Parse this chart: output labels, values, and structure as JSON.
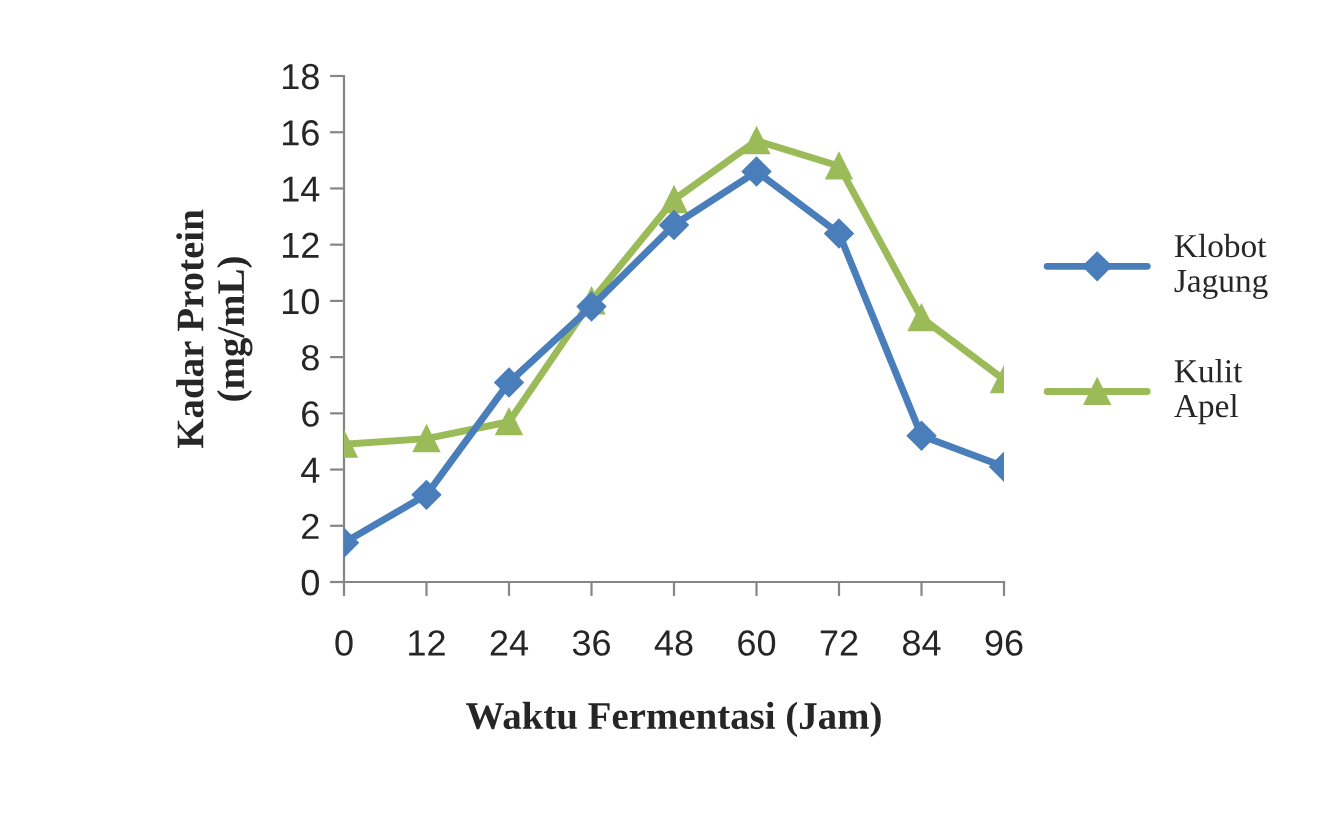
{
  "chart_data": {
    "type": "line",
    "xlabel": "Waktu Fermentasi (Jam)",
    "ylabel": "Kadar Protein\n(mg/mL)",
    "x": [
      0,
      12,
      24,
      36,
      48,
      60,
      72,
      84,
      96
    ],
    "series": [
      {
        "name": "Klobot\nJagung",
        "color": "#4a7ebb",
        "marker": "diamond",
        "values": [
          1.4,
          3.1,
          7.1,
          9.8,
          12.7,
          14.6,
          12.4,
          5.2,
          4.1
        ]
      },
      {
        "name": "Kulit\nApel",
        "color": "#9bbb59",
        "marker": "triangle",
        "values": [
          4.9,
          5.1,
          5.7,
          10.0,
          13.6,
          15.7,
          14.8,
          9.4,
          7.2
        ]
      }
    ],
    "xlim": [
      0,
      96
    ],
    "xticks": [
      0,
      12,
      24,
      36,
      48,
      60,
      72,
      84,
      96
    ],
    "ylim": [
      0,
      18
    ],
    "yticks": [
      0,
      2,
      4,
      6,
      8,
      10,
      12,
      14,
      16,
      18
    ],
    "grid": false,
    "legend": "right",
    "line_style": "solid"
  }
}
